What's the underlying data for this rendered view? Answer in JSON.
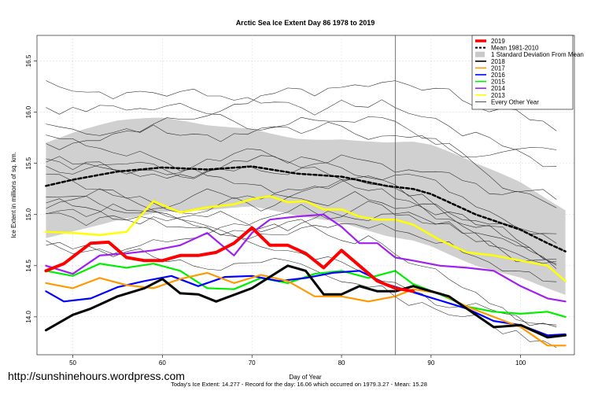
{
  "watermark": "http://sunshinehours.wordpress.com",
  "footer": "Today's Ice Extent: 14.277  - Record for the day: 16.06 which occurred on 1979.3.27  - Mean: 15.28",
  "chart_data": {
    "type": "line",
    "title": "Arctic Sea Ice Extent Day 86 1978 to 2019",
    "xlabel": "Day of Year",
    "ylabel": "Ice Extent in millions of sq. km.",
    "xlim": [
      46,
      106
    ],
    "ylim": [
      13.63,
      16.75
    ],
    "xticks": [
      50,
      60,
      70,
      80,
      90,
      100
    ],
    "yticks": [
      14.0,
      14.5,
      15.0,
      15.5,
      16.0,
      16.5
    ],
    "ytick_labels": [
      "14.0",
      "14.5",
      "15.0",
      "15.5",
      "16.0",
      "16.5"
    ],
    "grid": true,
    "vline_day": 86,
    "legend_position": "top-right",
    "legend": [
      {
        "label": "2019",
        "color": "#ff0000",
        "style": "thick"
      },
      {
        "label": "Mean 1981-2010",
        "color": "#000000",
        "style": "dashed"
      },
      {
        "label": "1 Standard Deviation From Mean",
        "color": "#c8c8c8",
        "style": "box"
      },
      {
        "label": "2018",
        "color": "#000000",
        "style": "line"
      },
      {
        "label": "2017",
        "color": "#ff9900",
        "style": "line"
      },
      {
        "label": "2016",
        "color": "#0000ff",
        "style": "line"
      },
      {
        "label": "2015",
        "color": "#00ee00",
        "style": "line"
      },
      {
        "label": "2014",
        "color": "#a020f0",
        "style": "line"
      },
      {
        "label": "2013",
        "color": "#ffff00",
        "style": "line"
      },
      {
        "label": "Every Other Year",
        "color": "#000000",
        "style": "thin"
      }
    ],
    "series": [
      {
        "name": "2019",
        "color": "#ff0000",
        "width": 4,
        "x": [
          47,
          49,
          52,
          54,
          56,
          58,
          60,
          62,
          64,
          66,
          68,
          70,
          72,
          74,
          76,
          78,
          80,
          82,
          84,
          86,
          88
        ],
        "y": [
          14.45,
          14.52,
          14.72,
          14.73,
          14.58,
          14.55,
          14.55,
          14.6,
          14.6,
          14.63,
          14.72,
          14.87,
          14.7,
          14.7,
          14.62,
          14.48,
          14.65,
          14.5,
          14.35,
          14.28,
          14.25
        ]
      },
      {
        "name": "Mean 1981-2010",
        "color": "#000000",
        "width": 2.5,
        "dash": "4,3",
        "x": [
          47,
          50,
          55,
          60,
          65,
          70,
          75,
          80,
          85,
          88,
          90,
          95,
          100,
          103,
          105
        ],
        "y": [
          15.28,
          15.34,
          15.42,
          15.46,
          15.44,
          15.47,
          15.4,
          15.37,
          15.28,
          15.25,
          15.2,
          15.0,
          14.85,
          14.72,
          14.64
        ]
      },
      {
        "name": "2018",
        "color": "#000000",
        "width": 3,
        "x": [
          47,
          50,
          52,
          55,
          58,
          60,
          62,
          64,
          66,
          70,
          74,
          76,
          78,
          80,
          82,
          84,
          86,
          88,
          90,
          92,
          95,
          97,
          100,
          103,
          105
        ],
        "y": [
          13.87,
          14.02,
          14.08,
          14.2,
          14.28,
          14.37,
          14.23,
          14.22,
          14.15,
          14.28,
          14.5,
          14.45,
          14.22,
          14.22,
          14.3,
          14.25,
          14.25,
          14.3,
          14.25,
          14.2,
          14.02,
          13.9,
          13.92,
          13.8,
          13.82
        ]
      },
      {
        "name": "2017",
        "color": "#ff9900",
        "width": 2.2,
        "x": [
          47,
          50,
          53,
          56,
          59,
          62,
          65,
          68,
          71,
          74,
          77,
          80,
          83,
          86,
          88,
          91,
          94,
          97,
          100,
          103,
          105
        ],
        "y": [
          14.33,
          14.28,
          14.38,
          14.31,
          14.28,
          14.37,
          14.43,
          14.33,
          14.41,
          14.35,
          14.2,
          14.2,
          14.15,
          14.2,
          14.27,
          14.23,
          14.1,
          14.0,
          13.9,
          13.72,
          13.72
        ]
      },
      {
        "name": "2016",
        "color": "#0000ff",
        "width": 2.2,
        "x": [
          47,
          49,
          52,
          55,
          58,
          61,
          64,
          67,
          70,
          73,
          76,
          79,
          82,
          85,
          88,
          91,
          94,
          97,
          100,
          103,
          105
        ],
        "y": [
          14.25,
          14.15,
          14.18,
          14.29,
          14.35,
          14.4,
          14.3,
          14.39,
          14.4,
          14.35,
          14.38,
          14.43,
          14.45,
          14.32,
          14.24,
          14.16,
          14.08,
          13.96,
          13.92,
          13.82,
          13.83
        ]
      },
      {
        "name": "2015",
        "color": "#00ee00",
        "width": 2.2,
        "x": [
          47,
          50,
          53,
          56,
          59,
          62,
          65,
          68,
          71,
          74,
          77,
          80,
          83,
          86,
          88,
          91,
          94,
          97,
          100,
          103,
          105
        ],
        "y": [
          14.45,
          14.4,
          14.52,
          14.48,
          14.52,
          14.45,
          14.28,
          14.27,
          14.38,
          14.33,
          14.42,
          14.45,
          14.38,
          14.45,
          14.32,
          14.22,
          14.1,
          14.05,
          14.03,
          14.05,
          14.0
        ]
      },
      {
        "name": "2014",
        "color": "#a020f0",
        "width": 2.2,
        "x": [
          47,
          50,
          53,
          56,
          59,
          62,
          65,
          68,
          70,
          72,
          75,
          78,
          80,
          82,
          84,
          86,
          88,
          91,
          94,
          97,
          100,
          103,
          105
        ],
        "y": [
          14.5,
          14.42,
          14.6,
          14.62,
          14.65,
          14.7,
          14.82,
          14.6,
          14.82,
          14.95,
          14.98,
          15.0,
          14.88,
          14.72,
          14.72,
          14.58,
          14.55,
          14.5,
          14.48,
          14.45,
          14.3,
          14.18,
          14.15
        ]
      },
      {
        "name": "2013",
        "color": "#ffff00",
        "width": 2.5,
        "x": [
          47,
          50,
          53,
          56,
          59,
          62,
          65,
          68,
          70,
          72,
          74,
          76,
          78,
          80,
          82,
          84,
          86,
          88,
          91,
          94,
          97,
          100,
          103,
          105
        ],
        "y": [
          14.83,
          14.82,
          14.8,
          14.83,
          15.13,
          15.02,
          15.07,
          15.1,
          15.15,
          15.18,
          15.12,
          15.13,
          15.05,
          15.05,
          14.98,
          14.95,
          14.95,
          14.9,
          14.75,
          14.63,
          14.6,
          14.55,
          14.5,
          14.35
        ]
      }
    ]
  }
}
